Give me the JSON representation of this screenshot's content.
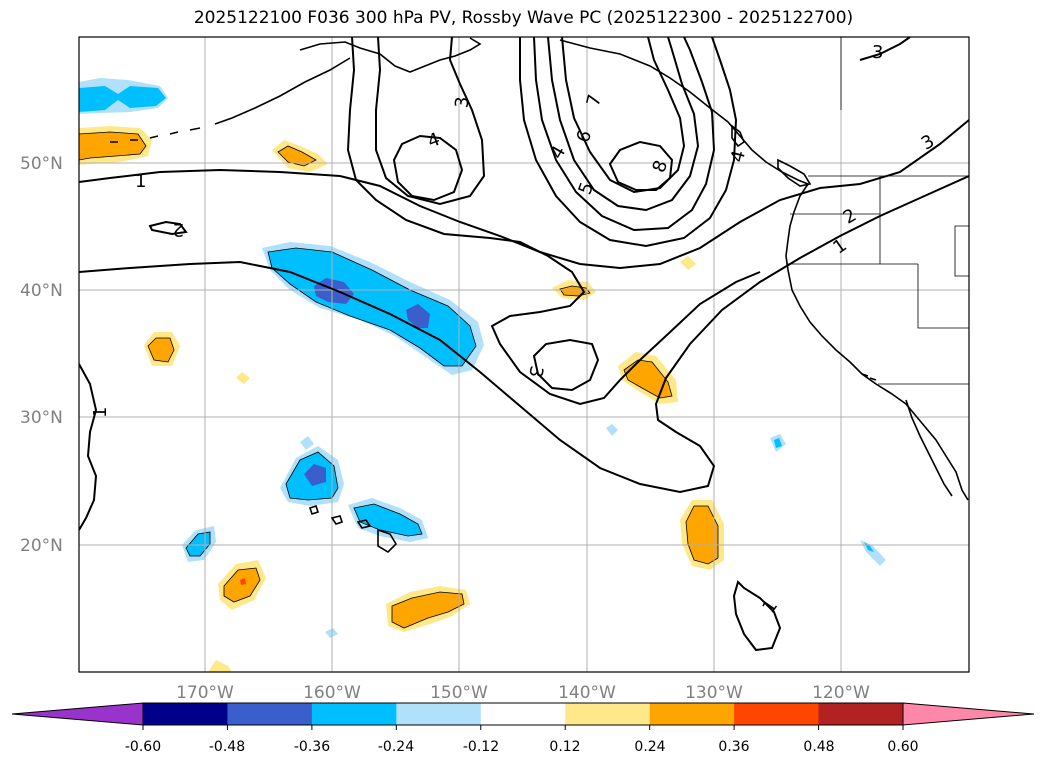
{
  "title": "2025122100 F036 300 hPa PV, Rossby Wave PC (2025122300 - 2025122700)",
  "map": {
    "extent": {
      "lon_min": -180,
      "lon_max": -110,
      "lat_min": 10,
      "lat_max": 60
    },
    "lat_ticks": [
      {
        "value": 50,
        "label": "50°N"
      },
      {
        "value": 40,
        "label": "40°N"
      },
      {
        "value": 30,
        "label": "30°N"
      },
      {
        "value": 20,
        "label": "20°N"
      }
    ],
    "lon_ticks": [
      {
        "value": -170,
        "label": "170°W"
      },
      {
        "value": -160,
        "label": "160°W"
      },
      {
        "value": -150,
        "label": "150°W"
      },
      {
        "value": -140,
        "label": "140°W"
      },
      {
        "value": -130,
        "label": "130°W"
      },
      {
        "value": -120,
        "label": "120°W"
      }
    ],
    "gridlines": true,
    "contour_labels": [
      "1",
      "1",
      "1",
      "1",
      "2",
      "2",
      "3",
      "3",
      "3",
      "3",
      "4",
      "4",
      "4",
      "5",
      "6",
      "7",
      "8"
    ]
  },
  "colorbar": {
    "levels": [
      "-0.60",
      "-0.48",
      "-0.36",
      "-0.24",
      "-0.12",
      "0.12",
      "0.24",
      "0.36",
      "0.48",
      "0.60"
    ],
    "colors": [
      "#9933cc",
      "#00008b",
      "#3a5fcd",
      "#00bfff",
      "#b0e0fa",
      "#ffffff",
      "#ffe88a",
      "#ffa500",
      "#ff4500",
      "#b22222",
      "#ff88aa"
    ],
    "extend": "both"
  }
}
